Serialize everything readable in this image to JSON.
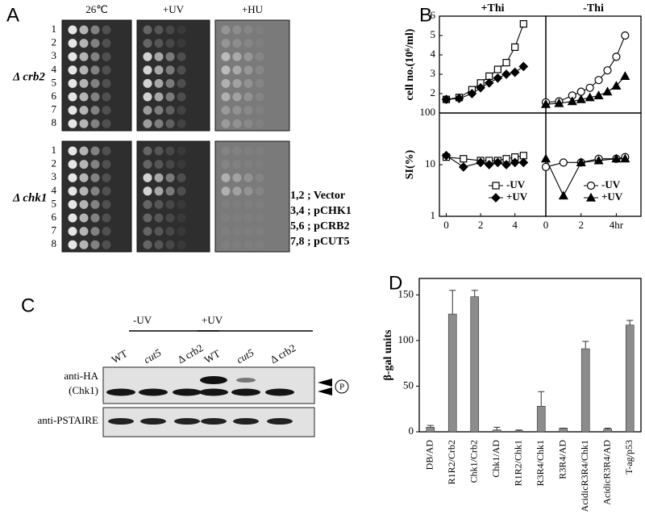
{
  "panels": {
    "a": {
      "label": "A",
      "columns": [
        "26℃",
        "+UV",
        "+HU"
      ],
      "groups": [
        {
          "label": "Δ crb2",
          "rows": [
            "1",
            "2",
            "3",
            "4",
            "5",
            "6",
            "7",
            "8"
          ]
        },
        {
          "label": "Δ chk1",
          "rows": [
            "1",
            "2",
            "3",
            "4",
            "5",
            "6",
            "7",
            "8"
          ]
        }
      ],
      "key": [
        "1,2 ; Vector",
        "3,4 ; pCHK1",
        "5,6 ; pCRB2",
        "7,8 ; pCUT5"
      ]
    },
    "b": {
      "label": "B"
    },
    "c": {
      "label": "C",
      "conditions": [
        "-UV",
        "+UV"
      ],
      "lanes": [
        "WT",
        "cut5",
        "Δ crb2",
        "WT",
        "cut5",
        "Δ crb2"
      ],
      "blots": [
        {
          "label": "anti-HA",
          "sublabel": "(Chk1)"
        },
        {
          "label": "anti-PSTAIRE"
        }
      ],
      "marker": "P"
    },
    "d": {
      "label": "D"
    }
  },
  "chart_data": [
    {
      "type": "line",
      "title": "+Thi",
      "ylabel": "cell no.(10⁶/ml)",
      "xlim": [
        -0.4,
        5.8
      ],
      "ylim": [
        1,
        6
      ],
      "yticks": [
        2,
        3,
        4,
        5,
        6
      ],
      "series": [
        {
          "color": "#000000",
          "marker": "square",
          "filled": false,
          "x": [
            0,
            0.75,
            1.5,
            2,
            2.5,
            3,
            3.5,
            4,
            4.5
          ],
          "values": [
            1.7,
            1.8,
            2.2,
            2.55,
            2.9,
            3.25,
            3.6,
            4.4,
            5.6
          ]
        },
        {
          "color": "#000000",
          "marker": "diamond",
          "filled": true,
          "x": [
            0,
            0.75,
            1.5,
            2,
            2.5,
            3,
            3.5,
            4,
            4.5
          ],
          "values": [
            1.7,
            1.75,
            2.0,
            2.3,
            2.55,
            2.8,
            3.0,
            3.1,
            3.4
          ]
        }
      ]
    },
    {
      "type": "line",
      "title": "-Thi",
      "xlim": [
        0,
        5.4
      ],
      "ylim": [
        1,
        6
      ],
      "series": [
        {
          "color": "#000000",
          "marker": "circle",
          "filled": false,
          "x": [
            0,
            0.75,
            1.5,
            2,
            2.5,
            3,
            3.5,
            4,
            4.5
          ],
          "values": [
            1.55,
            1.6,
            1.9,
            2.1,
            2.3,
            2.7,
            3.2,
            3.9,
            5.0
          ]
        },
        {
          "color": "#000000",
          "marker": "triangle",
          "filled": true,
          "x": [
            0,
            0.75,
            1.5,
            2,
            2.5,
            3,
            3.5,
            4,
            4.5
          ],
          "values": [
            1.45,
            1.5,
            1.6,
            1.7,
            1.8,
            1.9,
            2.1,
            2.4,
            2.9
          ]
        }
      ]
    },
    {
      "type": "line",
      "ylabel": "SI(%)",
      "log_scale": true,
      "xlim": [
        -0.4,
        5.8
      ],
      "ylim": [
        1,
        100
      ],
      "yticks": [
        1,
        10,
        100
      ],
      "xticks": [
        0,
        2,
        4
      ],
      "legend": "lower right",
      "series": [
        {
          "name": "-UV",
          "color": "#000000",
          "marker": "square",
          "filled": false,
          "x": [
            0,
            1,
            2,
            2.5,
            3,
            3.5,
            4,
            4.5
          ],
          "values": [
            14,
            13,
            12,
            12,
            12,
            13,
            14,
            15
          ]
        },
        {
          "name": "+UV",
          "color": "#000000",
          "marker": "diamond",
          "filled": true,
          "x": [
            0,
            1,
            2,
            2.5,
            3,
            3.5,
            4,
            4.5
          ],
          "values": [
            15,
            9,
            11,
            10,
            11,
            10,
            11,
            11
          ]
        }
      ]
    },
    {
      "type": "line",
      "log_scale": true,
      "xlim": [
        0,
        5.4
      ],
      "ylim": [
        1,
        100
      ],
      "xticks": [
        0,
        2,
        {
          "value": 4,
          "label": "4hr"
        }
      ],
      "legend": "lower right",
      "series": [
        {
          "name": "-UV",
          "color": "#000000",
          "marker": "circle",
          "filled": false,
          "x": [
            0,
            1,
            2,
            3,
            4,
            4.5
          ],
          "values": [
            9,
            11,
            11,
            13,
            13,
            14
          ]
        },
        {
          "name": "+UV",
          "color": "#000000",
          "marker": "triangle",
          "filled": true,
          "x": [
            0,
            1,
            2,
            3,
            4,
            4.5
          ],
          "values": [
            13,
            2.5,
            11,
            12,
            13,
            13
          ]
        }
      ]
    },
    {
      "type": "bar",
      "ylabel": "β-gal units",
      "color": "#8c8c8c",
      "ylim": [
        0,
        168
      ],
      "yticks": [
        0,
        50,
        100,
        150
      ],
      "categories": [
        "DB/AD",
        "R1R2/Crb2",
        "Chk1/Crb2",
        "Chk1/AD",
        "R1R2/Chk1",
        "R3R4/Chk1",
        "R3R4/AD",
        "AcidicR3R4/Chk1",
        "AcidicR3R4/AD",
        "T-ag/p53"
      ],
      "values": [
        5,
        129,
        148,
        2,
        1,
        28,
        4,
        91,
        3,
        117
      ],
      "errors": [
        2,
        26,
        7,
        3,
        1,
        16,
        0,
        8,
        1,
        5
      ]
    }
  ]
}
